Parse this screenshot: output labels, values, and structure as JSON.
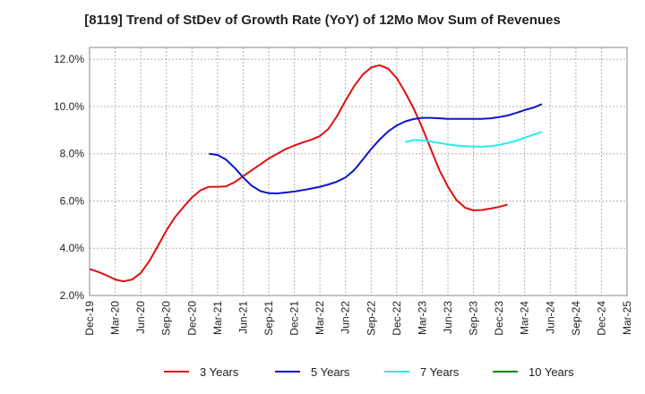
{
  "chart_data": {
    "type": "line",
    "title": "[8119]  Trend of StDev of Growth Rate (YoY) of 12Mo Mov Sum of Revenues",
    "xlabel": "",
    "ylabel": "",
    "x_ticks": [
      "Dec-19",
      "Mar-20",
      "Jun-20",
      "Sep-20",
      "Dec-20",
      "Mar-21",
      "Jun-21",
      "Sep-21",
      "Dec-21",
      "Mar-22",
      "Jun-22",
      "Sep-22",
      "Dec-22",
      "Mar-23",
      "Jun-23",
      "Sep-23",
      "Dec-23",
      "Mar-24",
      "Jun-24",
      "Sep-24",
      "Dec-24",
      "Mar-25"
    ],
    "y_ticks": [
      2.0,
      4.0,
      6.0,
      8.0,
      10.0,
      12.0
    ],
    "y_tick_labels": [
      "2.0%",
      "4.0%",
      "6.0%",
      "8.0%",
      "10.0%",
      "12.0%"
    ],
    "ylim": [
      2.0,
      12.5
    ],
    "xlim_index": [
      0,
      21
    ],
    "grid": true,
    "legend_position": "bottom",
    "series": [
      {
        "name": "3 Years",
        "color": "#dd1111",
        "points": [
          [
            0,
            3.12
          ],
          [
            0.33,
            3.0
          ],
          [
            0.67,
            2.85
          ],
          [
            1,
            2.68
          ],
          [
            1.33,
            2.6
          ],
          [
            1.67,
            2.68
          ],
          [
            2,
            2.95
          ],
          [
            2.33,
            3.45
          ],
          [
            2.67,
            4.1
          ],
          [
            3,
            4.75
          ],
          [
            3.33,
            5.3
          ],
          [
            3.67,
            5.75
          ],
          [
            4,
            6.15
          ],
          [
            4.33,
            6.45
          ],
          [
            4.67,
            6.6
          ],
          [
            5,
            6.6
          ],
          [
            5.33,
            6.62
          ],
          [
            5.67,
            6.8
          ],
          [
            6,
            7.05
          ],
          [
            6.33,
            7.3
          ],
          [
            6.67,
            7.55
          ],
          [
            7,
            7.8
          ],
          [
            7.33,
            8.0
          ],
          [
            7.67,
            8.2
          ],
          [
            8,
            8.35
          ],
          [
            8.33,
            8.48
          ],
          [
            8.67,
            8.6
          ],
          [
            9,
            8.75
          ],
          [
            9.33,
            9.05
          ],
          [
            9.67,
            9.6
          ],
          [
            10,
            10.25
          ],
          [
            10.33,
            10.85
          ],
          [
            10.67,
            11.35
          ],
          [
            11,
            11.65
          ],
          [
            11.33,
            11.75
          ],
          [
            11.67,
            11.6
          ],
          [
            12,
            11.2
          ],
          [
            12.33,
            10.6
          ],
          [
            12.67,
            9.9
          ],
          [
            13,
            9.1
          ],
          [
            13.33,
            8.2
          ],
          [
            13.67,
            7.3
          ],
          [
            14,
            6.6
          ],
          [
            14.33,
            6.05
          ],
          [
            14.67,
            5.72
          ],
          [
            15,
            5.6
          ],
          [
            15.33,
            5.62
          ],
          [
            15.67,
            5.68
          ],
          [
            16,
            5.75
          ],
          [
            16.33,
            5.85
          ]
        ]
      },
      {
        "name": "5 Years",
        "color": "#0a17c8",
        "points": [
          [
            4.67,
            8.0
          ],
          [
            5,
            7.95
          ],
          [
            5.33,
            7.75
          ],
          [
            5.67,
            7.4
          ],
          [
            6,
            7.0
          ],
          [
            6.33,
            6.65
          ],
          [
            6.67,
            6.42
          ],
          [
            7,
            6.33
          ],
          [
            7.33,
            6.32
          ],
          [
            7.67,
            6.36
          ],
          [
            8,
            6.4
          ],
          [
            8.33,
            6.46
          ],
          [
            8.67,
            6.53
          ],
          [
            9,
            6.6
          ],
          [
            9.33,
            6.7
          ],
          [
            9.67,
            6.82
          ],
          [
            10,
            7.0
          ],
          [
            10.33,
            7.3
          ],
          [
            10.67,
            7.75
          ],
          [
            11,
            8.2
          ],
          [
            11.33,
            8.6
          ],
          [
            11.67,
            8.95
          ],
          [
            12,
            9.2
          ],
          [
            12.33,
            9.37
          ],
          [
            12.67,
            9.47
          ],
          [
            13,
            9.52
          ],
          [
            13.33,
            9.52
          ],
          [
            13.67,
            9.5
          ],
          [
            14,
            9.48
          ],
          [
            14.33,
            9.48
          ],
          [
            14.67,
            9.48
          ],
          [
            15,
            9.48
          ],
          [
            15.33,
            9.48
          ],
          [
            15.67,
            9.5
          ],
          [
            16,
            9.55
          ],
          [
            16.33,
            9.62
          ],
          [
            16.67,
            9.73
          ],
          [
            17,
            9.85
          ],
          [
            17.33,
            9.95
          ],
          [
            17.67,
            10.1
          ]
        ]
      },
      {
        "name": "7 Years",
        "color": "#22eeee",
        "points": [
          [
            12.33,
            8.5
          ],
          [
            12.67,
            8.58
          ],
          [
            13,
            8.57
          ],
          [
            13.33,
            8.52
          ],
          [
            13.67,
            8.45
          ],
          [
            14,
            8.4
          ],
          [
            14.33,
            8.35
          ],
          [
            14.67,
            8.32
          ],
          [
            15,
            8.3
          ],
          [
            15.33,
            8.3
          ],
          [
            15.67,
            8.32
          ],
          [
            16,
            8.38
          ],
          [
            16.33,
            8.45
          ],
          [
            16.67,
            8.55
          ],
          [
            17,
            8.68
          ],
          [
            17.33,
            8.8
          ],
          [
            17.67,
            8.93
          ]
        ]
      },
      {
        "name": "10 Years",
        "color": "#118811",
        "points": []
      }
    ]
  }
}
